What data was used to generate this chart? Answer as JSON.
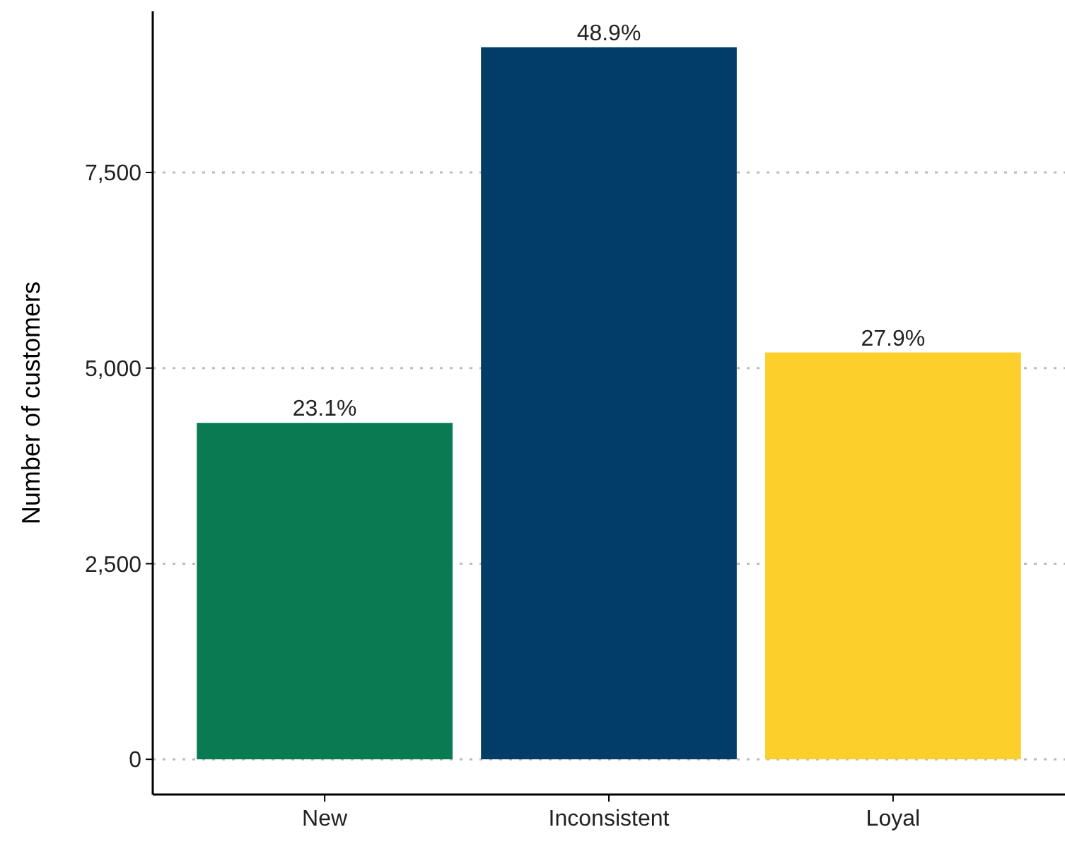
{
  "chart_data": {
    "type": "bar",
    "ylabel": "Number of customers",
    "categories": [
      "New",
      "Inconsistent",
      "Loyal"
    ],
    "values": [
      4300,
      9100,
      5200
    ],
    "colors": [
      "#0a7a52",
      "#023d67",
      "#fccf2a"
    ],
    "annotations": [
      {
        "text": "23.1%",
        "x": "New",
        "y": 4300
      },
      {
        "text": "48.9%",
        "x": "Inconsistent",
        "y": 9100
      },
      {
        "text": "27.9%",
        "x": "Loyal",
        "y": 5200
      }
    ],
    "ylim": [
      -450,
      9560
    ],
    "yticks": [
      0,
      {
        "value": 2500,
        "label": "2,500"
      },
      {
        "value": 5000,
        "label": "5,000"
      },
      {
        "value": 7500,
        "label": "7,500"
      }
    ],
    "grid": "y"
  }
}
